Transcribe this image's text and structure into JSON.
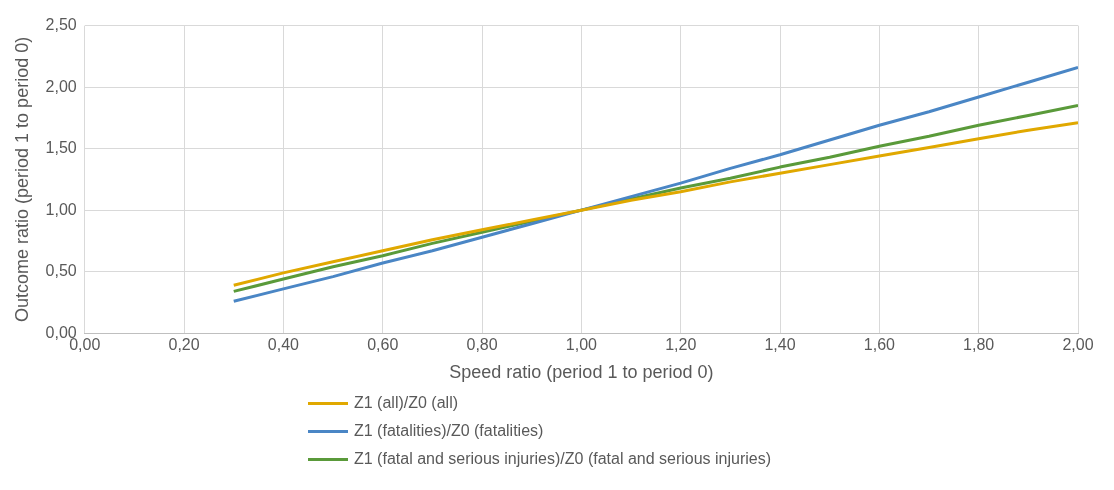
{
  "chart_data": {
    "type": "line",
    "xlabel": "Speed ratio (period 1 to period 0)",
    "ylabel": "Outcome ratio (period 1 to period 0)",
    "xlim": [
      0,
      2
    ],
    "ylim": [
      0,
      2.5
    ],
    "xticks": [
      {
        "value": 0,
        "label": "0,00"
      },
      {
        "value": 0.2,
        "label": "0,20"
      },
      {
        "value": 0.4,
        "label": "0,40"
      },
      {
        "value": 0.6,
        "label": "0,60"
      },
      {
        "value": 0.8,
        "label": "0,80"
      },
      {
        "value": 1,
        "label": "1,00"
      },
      {
        "value": 1.2,
        "label": "1,20"
      },
      {
        "value": 1.4,
        "label": "1,40"
      },
      {
        "value": 1.6,
        "label": "1,60"
      },
      {
        "value": 1.8,
        "label": "1,80"
      },
      {
        "value": 2,
        "label": "2,00"
      }
    ],
    "yticks": [
      {
        "value": 0,
        "label": "0,00"
      },
      {
        "value": 0.5,
        "label": "0,50"
      },
      {
        "value": 1,
        "label": "1,00"
      },
      {
        "value": 1.5,
        "label": "1,50"
      },
      {
        "value": 2,
        "label": "2,00"
      },
      {
        "value": 2.5,
        "label": "2,50"
      }
    ],
    "x": [
      0.3,
      0.4,
      0.5,
      0.6,
      0.7,
      0.8,
      0.9,
      1.0,
      1.1,
      1.2,
      1.3,
      1.4,
      1.5,
      1.6,
      1.7,
      1.8,
      1.9,
      2.0
    ],
    "series": [
      {
        "name": "Z1 (all)/Z0 (all)",
        "color": "#e0a800",
        "values": [
          0.39,
          0.49,
          0.58,
          0.67,
          0.76,
          0.84,
          0.92,
          1.0,
          1.08,
          1.15,
          1.23,
          1.3,
          1.37,
          1.44,
          1.51,
          1.58,
          1.65,
          1.71
        ]
      },
      {
        "name": "Z1 (fatalities)/Z0 (fatalities)",
        "color": "#4a86c5",
        "values": [
          0.26,
          0.36,
          0.46,
          0.57,
          0.67,
          0.78,
          0.89,
          1.0,
          1.11,
          1.22,
          1.34,
          1.45,
          1.57,
          1.69,
          1.8,
          1.92,
          2.04,
          2.16
        ]
      },
      {
        "name": "Z1 (fatal and serious injuries)/Z0 (fatal and serious injuries)",
        "color": "#5a9a3a",
        "values": [
          0.34,
          0.44,
          0.54,
          0.63,
          0.73,
          0.82,
          0.91,
          1.0,
          1.09,
          1.18,
          1.26,
          1.35,
          1.43,
          1.52,
          1.6,
          1.69,
          1.77,
          1.85
        ]
      }
    ],
    "grid": true,
    "legend": "bottom",
    "marker": "none",
    "line_style": "solid"
  }
}
